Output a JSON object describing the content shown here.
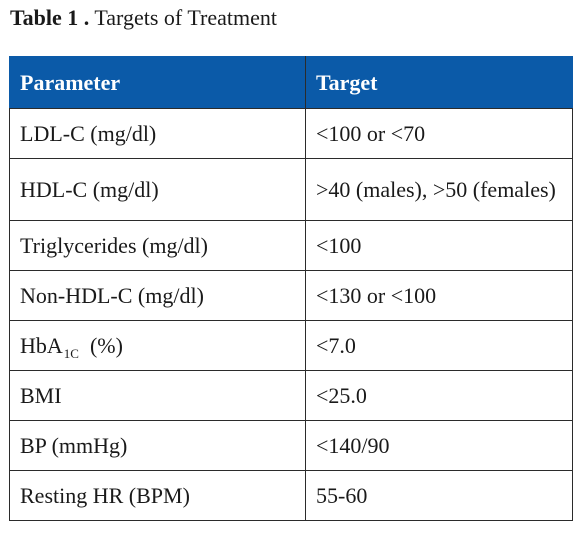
{
  "caption": {
    "label": "Table 1 .",
    "title": "Targets of Treatment"
  },
  "table": {
    "headers": [
      "Parameter",
      "Target"
    ],
    "rows": [
      {
        "parameter": "LDL-C (mg/dl)",
        "target": "<100 or <70"
      },
      {
        "parameter": "HDL-C (mg/dl)",
        "target": ">40 (males), >50 (females)"
      },
      {
        "parameter": "Triglycerides (mg/dl)",
        "target": "<100"
      },
      {
        "parameter": "Non-HDL-C (mg/dl)",
        "target": "<130 or <100"
      },
      {
        "parameter_main": "HbA",
        "parameter_sub": "1C",
        "parameter_unit": "(%)",
        "target": "<7.0"
      },
      {
        "parameter": "BMI",
        "target": "<25.0"
      },
      {
        "parameter": "BP (mmHg)",
        "target": "<140/90"
      },
      {
        "parameter": "Resting HR (BPM)",
        "target": "55-60"
      }
    ]
  },
  "colors": {
    "header_background": "#0b5aa8",
    "header_text": "#ffffff",
    "border": "#2b2b2b"
  }
}
